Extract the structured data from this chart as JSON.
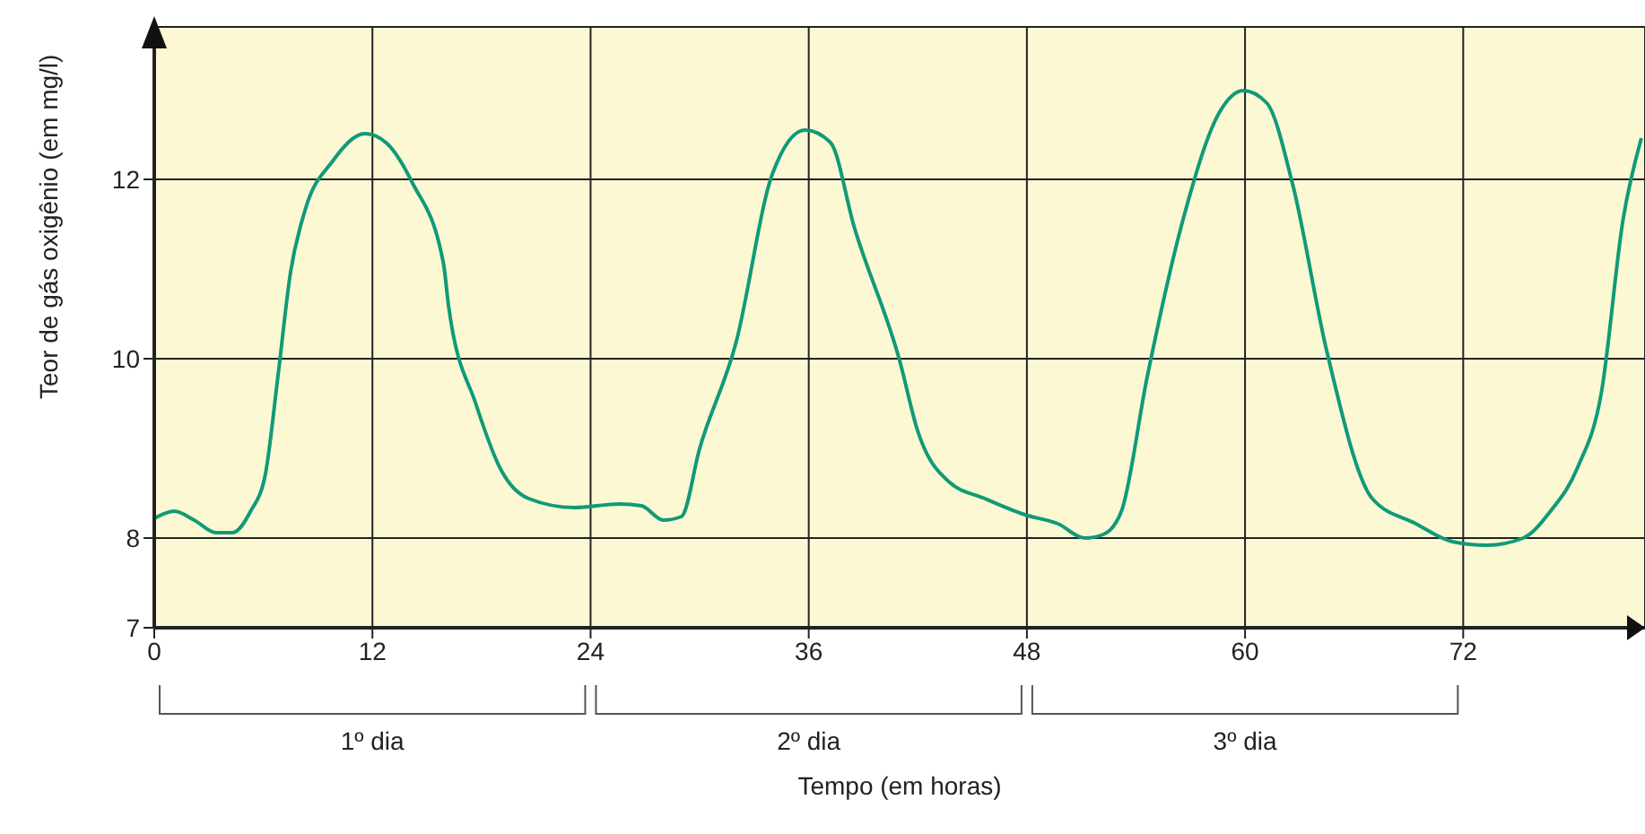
{
  "chart_data": {
    "type": "line",
    "xlabel": "Tempo (em horas)",
    "ylabel": "Teor de gás oxigênio (em mg/l)",
    "x": [
      0,
      1.1,
      2.2,
      3.4,
      4.3,
      5.3,
      6.1,
      6.8,
      7.5,
      8.3,
      9.8,
      11.6,
      12.8,
      14.2,
      15.9,
      16.2,
      17.7,
      19.1,
      20.6,
      23.1,
      25.6,
      26.8,
      28,
      29,
      30,
      32,
      34,
      35.8,
      37.2,
      38.5,
      41,
      42,
      43.7,
      45.7,
      47.9,
      49.7,
      51.2,
      52.2,
      53.2,
      54.6,
      56.6,
      58.6,
      59.9,
      61.2,
      62.6,
      64.5,
      67,
      69.4,
      71.4,
      73.3,
      75.3,
      76.8,
      78.3,
      79.6,
      80.8,
      81.8
    ],
    "series": [
      {
        "color": "#109a78",
        "values": [
          8.22,
          8.3,
          8.2,
          8.06,
          8.06,
          8.3,
          8.7,
          9.8,
          10.97,
          11.66,
          12.2,
          12.51,
          12.4,
          11.96,
          11.07,
          10.57,
          9.49,
          8.75,
          8.44,
          8.34,
          8.38,
          8.36,
          8.2,
          8.24,
          9.0,
          10.18,
          12.06,
          12.55,
          12.41,
          11.47,
          9.98,
          9.19,
          8.63,
          8.44,
          8.26,
          8.16,
          8.0,
          8.04,
          8.3,
          9.78,
          11.56,
          12.75,
          12.99,
          12.85,
          11.96,
          10.08,
          8.44,
          8.16,
          7.96,
          7.92,
          8.0,
          8.3,
          8.79,
          9.62,
          11.56,
          12.46
        ]
      }
    ],
    "xlim": [
      0,
      82
    ],
    "xticks": [
      0,
      12,
      24,
      36,
      48,
      60,
      72
    ],
    "ylim": [
      7,
      13.7
    ],
    "yticks": [
      7,
      8,
      10,
      12
    ],
    "grid": true,
    "marker": "none",
    "line_style": "solid",
    "annotations": [
      "1º dia",
      "2º dia",
      "3º dia"
    ]
  }
}
